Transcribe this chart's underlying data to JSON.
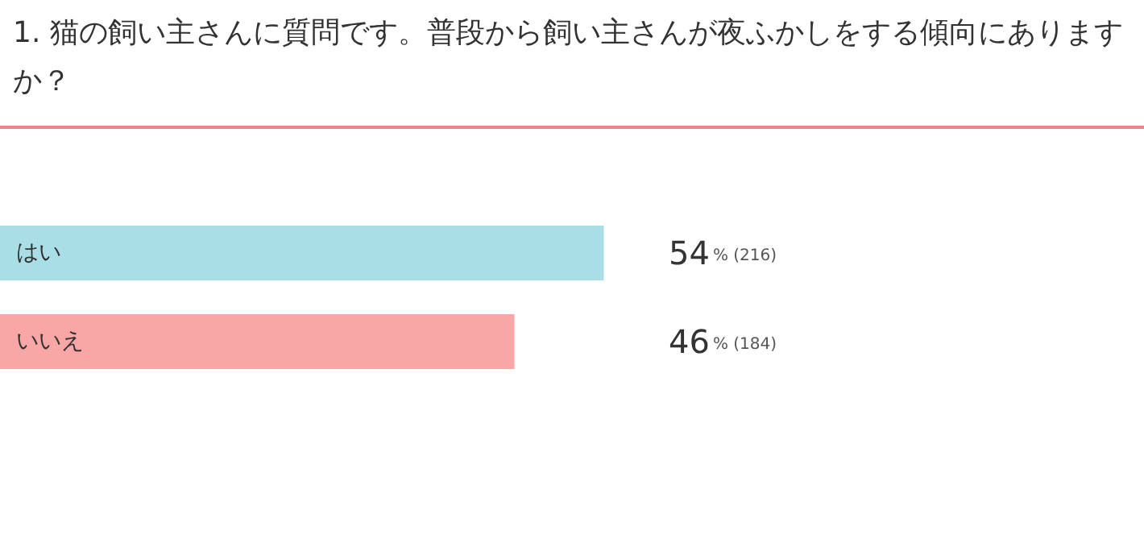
{
  "chart_data": {
    "type": "bar",
    "orientation": "horizontal",
    "title": "1. 猫の飼い主さんに質問です。普段から飼い主さんが夜ふかしをする傾向にありますか？",
    "categories": [
      "はい",
      "いいえ"
    ],
    "values": [
      54,
      46
    ],
    "colors": [
      "#a9dee7",
      "#f9a6a6"
    ],
    "value_labels": [
      "54% (216)",
      "46% (184)"
    ]
  }
}
